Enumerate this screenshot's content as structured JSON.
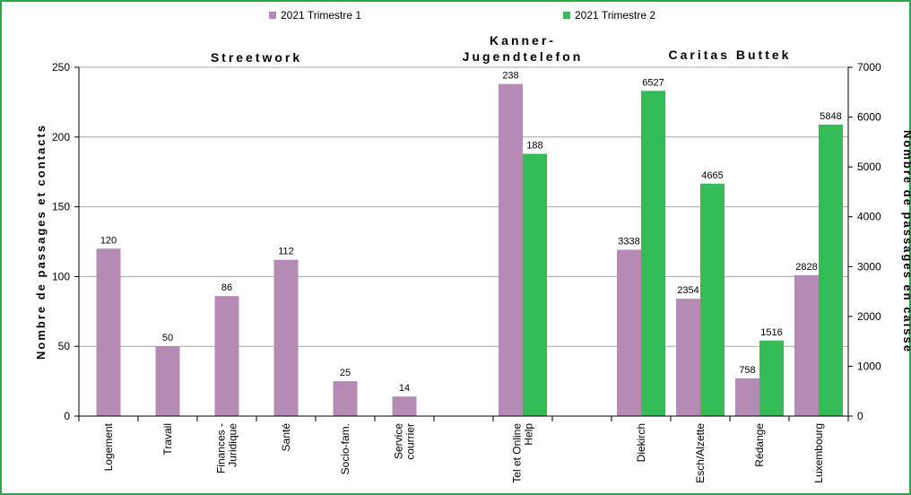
{
  "chart_data": {
    "type": "bar",
    "legend": {
      "placement": "top"
    },
    "grid": true,
    "series": [
      {
        "name": "2021 Trimestre 1",
        "color": "#b58ab5"
      },
      {
        "name": "2021 Trimestre 2",
        "color": "#33bb55"
      }
    ],
    "groups": [
      {
        "label": "Streetwork",
        "axis": "left",
        "categories": [
          {
            "label": "Logement",
            "values": [
              120,
              null
            ]
          },
          {
            "label": "Travail",
            "values": [
              50,
              null
            ]
          },
          {
            "label": "Finances - Juridique",
            "values": [
              86,
              null
            ]
          },
          {
            "label": "Santé",
            "values": [
              112,
              null
            ]
          },
          {
            "label": "Socio-fam.",
            "values": [
              25,
              null
            ]
          },
          {
            "label": "Service courrier",
            "values": [
              14,
              null
            ]
          }
        ]
      },
      {
        "label": "Kanner-Jugendtelefon",
        "axis": "left",
        "categories": [
          {
            "label": "Tel et Online Help",
            "values": [
              238,
              188
            ]
          }
        ]
      },
      {
        "label": "Caritas Buttek",
        "axis": "right",
        "categories": [
          {
            "label": "Diekirch",
            "values": [
              3338,
              6527
            ]
          },
          {
            "label": "Esch/Alzette",
            "values": [
              2354,
              4665
            ]
          },
          {
            "label": "Rédange",
            "values": [
              758,
              1516
            ]
          },
          {
            "label": "Luxembourg",
            "values": [
              2828,
              5848
            ]
          }
        ]
      }
    ],
    "y_left": {
      "label": "Nombre de passages et contacts",
      "lim": [
        0,
        250
      ],
      "ticks": [
        0,
        50,
        100,
        150,
        200,
        250
      ]
    },
    "y_right": {
      "label": "Nombre de passages en caisse",
      "lim": [
        0,
        7000
      ],
      "ticks": [
        0,
        1000,
        2000,
        3000,
        4000,
        5000,
        6000,
        7000
      ]
    }
  }
}
